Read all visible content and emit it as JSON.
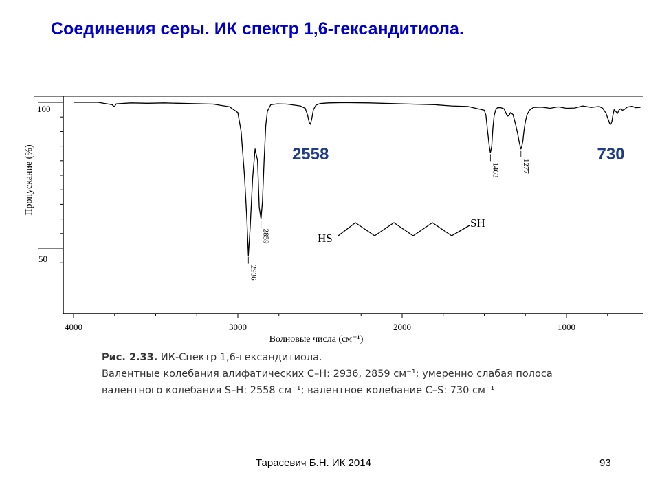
{
  "slide": {
    "title": "Соединения серы. ИК спектр 1,6-гександитиола.",
    "footer_author": "Тарасевич Б.Н.  ИК 2014",
    "page_number": "93"
  },
  "chart_data": {
    "type": "line",
    "xlabel": "Волновые числа (см⁻¹)",
    "ylabel": "Пропускание  (%)",
    "x_reversed": true,
    "xlim": [
      4000,
      550
    ],
    "ylim": [
      38,
      103
    ],
    "x_ticks": [
      "4000",
      "3000",
      "2000",
      "1000"
    ],
    "y_ticks": [
      "100",
      "50"
    ],
    "grid": false,
    "peak_labels": [
      {
        "x": 2936,
        "label": "2936"
      },
      {
        "x": 2859,
        "label": "2859"
      },
      {
        "x": 1463,
        "label": "1463"
      },
      {
        "x": 1277,
        "label": "1277"
      }
    ],
    "highlight_labels": [
      {
        "x": 2558,
        "label": "2558"
      },
      {
        "x": 730,
        "label": "730"
      }
    ],
    "highlight_color": "#1f3c88",
    "line_color": "#000000",
    "series": [
      {
        "x": [
          4000,
          3850,
          3765,
          3752,
          3740,
          3650,
          3550,
          3450,
          3300,
          3150,
          3050,
          3000,
          2980,
          2960,
          2945,
          2936,
          2925,
          2910,
          2895,
          2880,
          2870,
          2859,
          2850,
          2840,
          2830,
          2820,
          2800,
          2760,
          2700,
          2620,
          2590,
          2575,
          2565,
          2558,
          2550,
          2540,
          2525,
          2500,
          2450,
          2350,
          2200,
          2000,
          1800,
          1700,
          1600,
          1500,
          1490,
          1480,
          1470,
          1463,
          1455,
          1448,
          1440,
          1430,
          1420,
          1400,
          1380,
          1370,
          1360,
          1350,
          1340,
          1325,
          1310,
          1298,
          1288,
          1280,
          1277,
          1272,
          1265,
          1258,
          1250,
          1240,
          1225,
          1200,
          1150,
          1100,
          1050,
          1000,
          950,
          900,
          850,
          800,
          780,
          760,
          745,
          737,
          730,
          724,
          718,
          710,
          700,
          690,
          680,
          670,
          660,
          650,
          630,
          600,
          580,
          550
        ],
        "y": [
          100,
          100,
          99.2,
          98.5,
          99.5,
          99.8,
          99.7,
          99.8,
          99.6,
          99.4,
          98.5,
          96.5,
          90,
          75,
          60,
          47.5,
          57,
          74,
          84,
          80,
          64,
          60,
          66,
          80,
          92,
          97,
          99.2,
          99.5,
          99.4,
          98.8,
          98,
          95.5,
          93,
          92.5,
          94.5,
          97.5,
          99,
          99.6,
          99.8,
          99.9,
          99.8,
          99.5,
          99.2,
          98.8,
          98.6,
          97.3,
          95.5,
          90,
          85,
          82.7,
          85,
          91,
          95.5,
          97.5,
          98.2,
          98.2,
          97.8,
          96.5,
          95.3,
          95.5,
          96.5,
          95.8,
          92.5,
          89.5,
          86.5,
          84.5,
          84,
          84.8,
          87,
          90.5,
          93.5,
          95.8,
          97.3,
          98.3,
          98.4,
          98,
          98.5,
          98,
          98.1,
          98.8,
          98.3,
          98.6,
          98,
          96.3,
          94,
          92.7,
          92.5,
          93.3,
          95.5,
          97.5,
          96.9,
          96.2,
          97.4,
          97.8,
          97.3,
          97.5,
          98.4,
          98.7,
          98.2,
          98.3
        ]
      }
    ]
  },
  "structure": {
    "left_group": "HS",
    "right_group": "SH"
  },
  "caption": {
    "fig_label": "Рис. 2.33.",
    "fig_title": " ИК-Спектр 1,6-гександитиола.",
    "line2": "Валентные колебания алифатических С–Н: 2936, 2859 см⁻¹; умеренно слабая полоса",
    "line3": "валентного колебания S–H: 2558 см⁻¹; валентное колебание С–S: 730 см⁻¹"
  }
}
